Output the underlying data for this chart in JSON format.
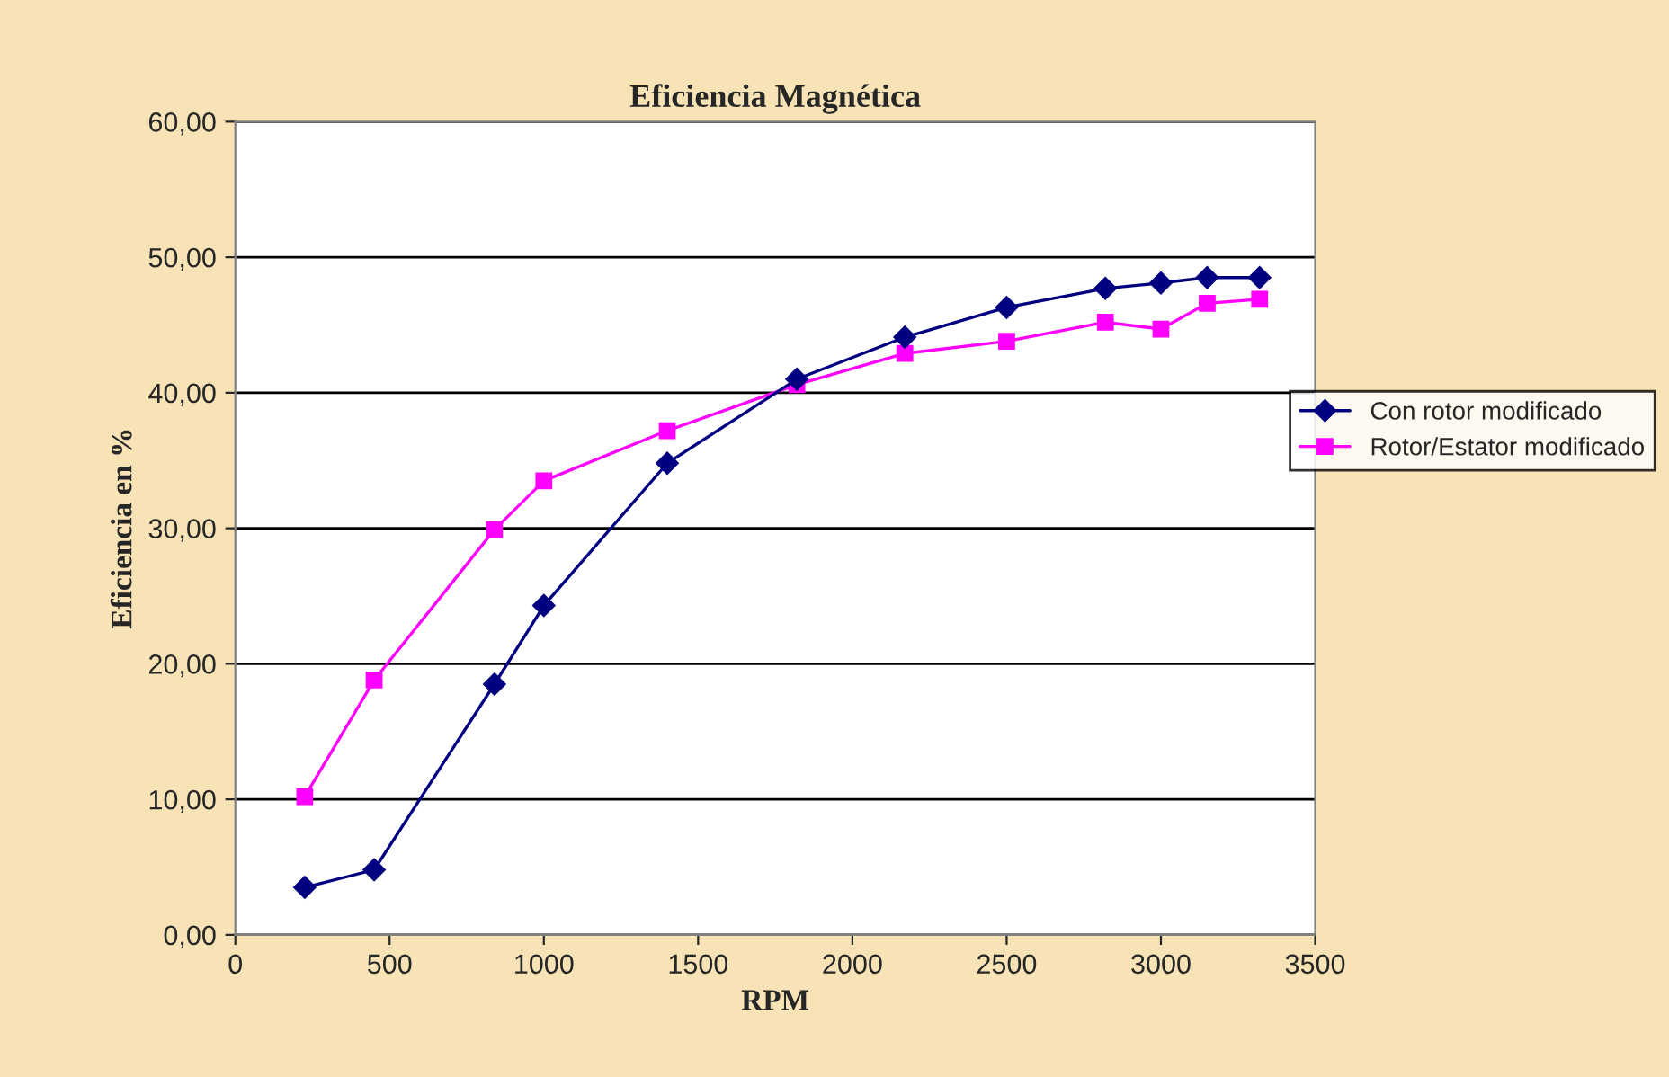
{
  "chart_data": {
    "type": "line",
    "title": "Eficiencia Magnética",
    "xlabel": "RPM",
    "ylabel": "Eficiencia en %",
    "xlim": [
      0,
      3500
    ],
    "xticks": [
      0,
      500,
      1000,
      1500,
      2000,
      2500,
      3000,
      3500
    ],
    "ylim": [
      0,
      60
    ],
    "yticks": [
      {
        "value": 0,
        "label": "0,00"
      },
      {
        "value": 10,
        "label": "10,00"
      },
      {
        "value": 20,
        "label": "20,00"
      },
      {
        "value": 30,
        "label": "30,00"
      },
      {
        "value": 40,
        "label": "40,00"
      },
      {
        "value": 50,
        "label": "50,00"
      },
      {
        "value": 60,
        "label": "60,00"
      }
    ],
    "x": [
      225,
      450,
      840,
      1000,
      1400,
      1820,
      2170,
      2500,
      2820,
      3000,
      3150,
      3320
    ],
    "series": [
      {
        "name": "Con rotor modificado",
        "color": "#000080",
        "marker": "diamond",
        "values": [
          3.5,
          4.8,
          18.5,
          24.3,
          34.8,
          41.0,
          44.1,
          46.3,
          47.7,
          48.1,
          48.5,
          48.5
        ]
      },
      {
        "name": "Rotor/Estator modificado",
        "color": "#ff00ff",
        "marker": "square",
        "values": [
          10.2,
          18.8,
          29.9,
          33.5,
          37.2,
          40.6,
          42.9,
          43.8,
          45.2,
          44.7,
          46.6,
          46.9
        ]
      }
    ],
    "grid": "y",
    "legend": "right",
    "line_style": "solid"
  }
}
